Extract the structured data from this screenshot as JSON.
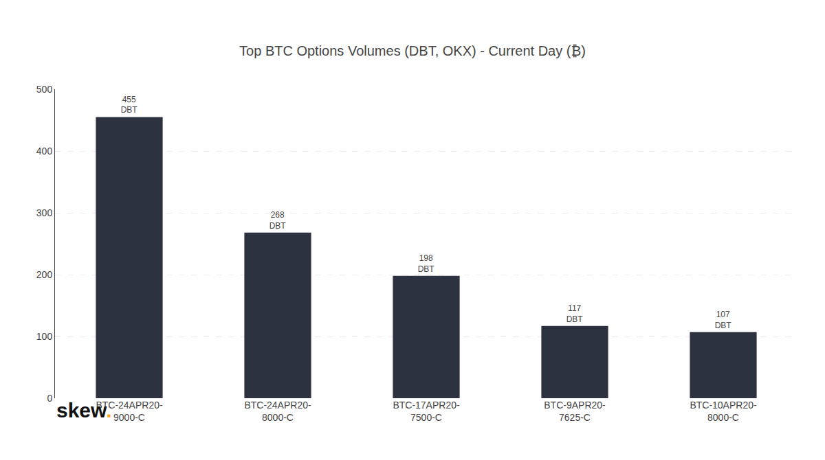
{
  "chart_data": {
    "type": "bar",
    "title": "Top BTC Options Volumes (DBT, OKX) - Current Day (₿)",
    "categories": [
      "BTC-24APR20-\n9000-C",
      "BTC-24APR20-\n8000-C",
      "BTC-17APR20-\n7500-C",
      "BTC-9APR20-\n7625-C",
      "BTC-10APR20-\n8000-C"
    ],
    "values": [
      455,
      268,
      198,
      117,
      107
    ],
    "source_labels": [
      "DBT",
      "DBT",
      "DBT",
      "DBT",
      "DBT"
    ],
    "data_labels": true,
    "color": "#2c3240",
    "ylim": [
      0,
      500
    ],
    "yticks": [
      0,
      100,
      200,
      300,
      400,
      500
    ],
    "grid": true,
    "annotations": [
      {
        "text": "skew",
        "color": "#111111"
      },
      {
        "text": ".",
        "color": "#f5a623"
      }
    ]
  }
}
